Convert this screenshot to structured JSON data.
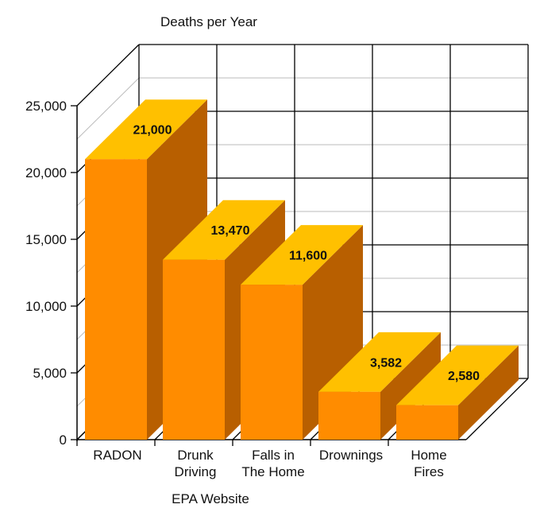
{
  "chart_data": {
    "type": "bar",
    "title": "Deaths per Year",
    "xlabel": "EPA Website",
    "ylabel": "",
    "ylim": [
      0,
      25000
    ],
    "yticks": [
      "0",
      "5,000",
      "10,000",
      "15,000",
      "20,000",
      "25,000"
    ],
    "categories": [
      [
        "RADON"
      ],
      [
        "Drunk",
        "Driving"
      ],
      [
        "Falls in",
        "The Home"
      ],
      [
        "Drownings"
      ],
      [
        "Home",
        "Fires"
      ]
    ],
    "values": [
      21000,
      13470,
      11600,
      3582,
      2580
    ],
    "value_labels": [
      "21,000",
      "13,470",
      "11,600",
      "3,582",
      "2,580"
    ],
    "grid": true,
    "style": "3d",
    "colors": {
      "front": "#FF8C00",
      "top": "#FFC000",
      "side": "#B85F00",
      "grid": "#000000"
    }
  }
}
